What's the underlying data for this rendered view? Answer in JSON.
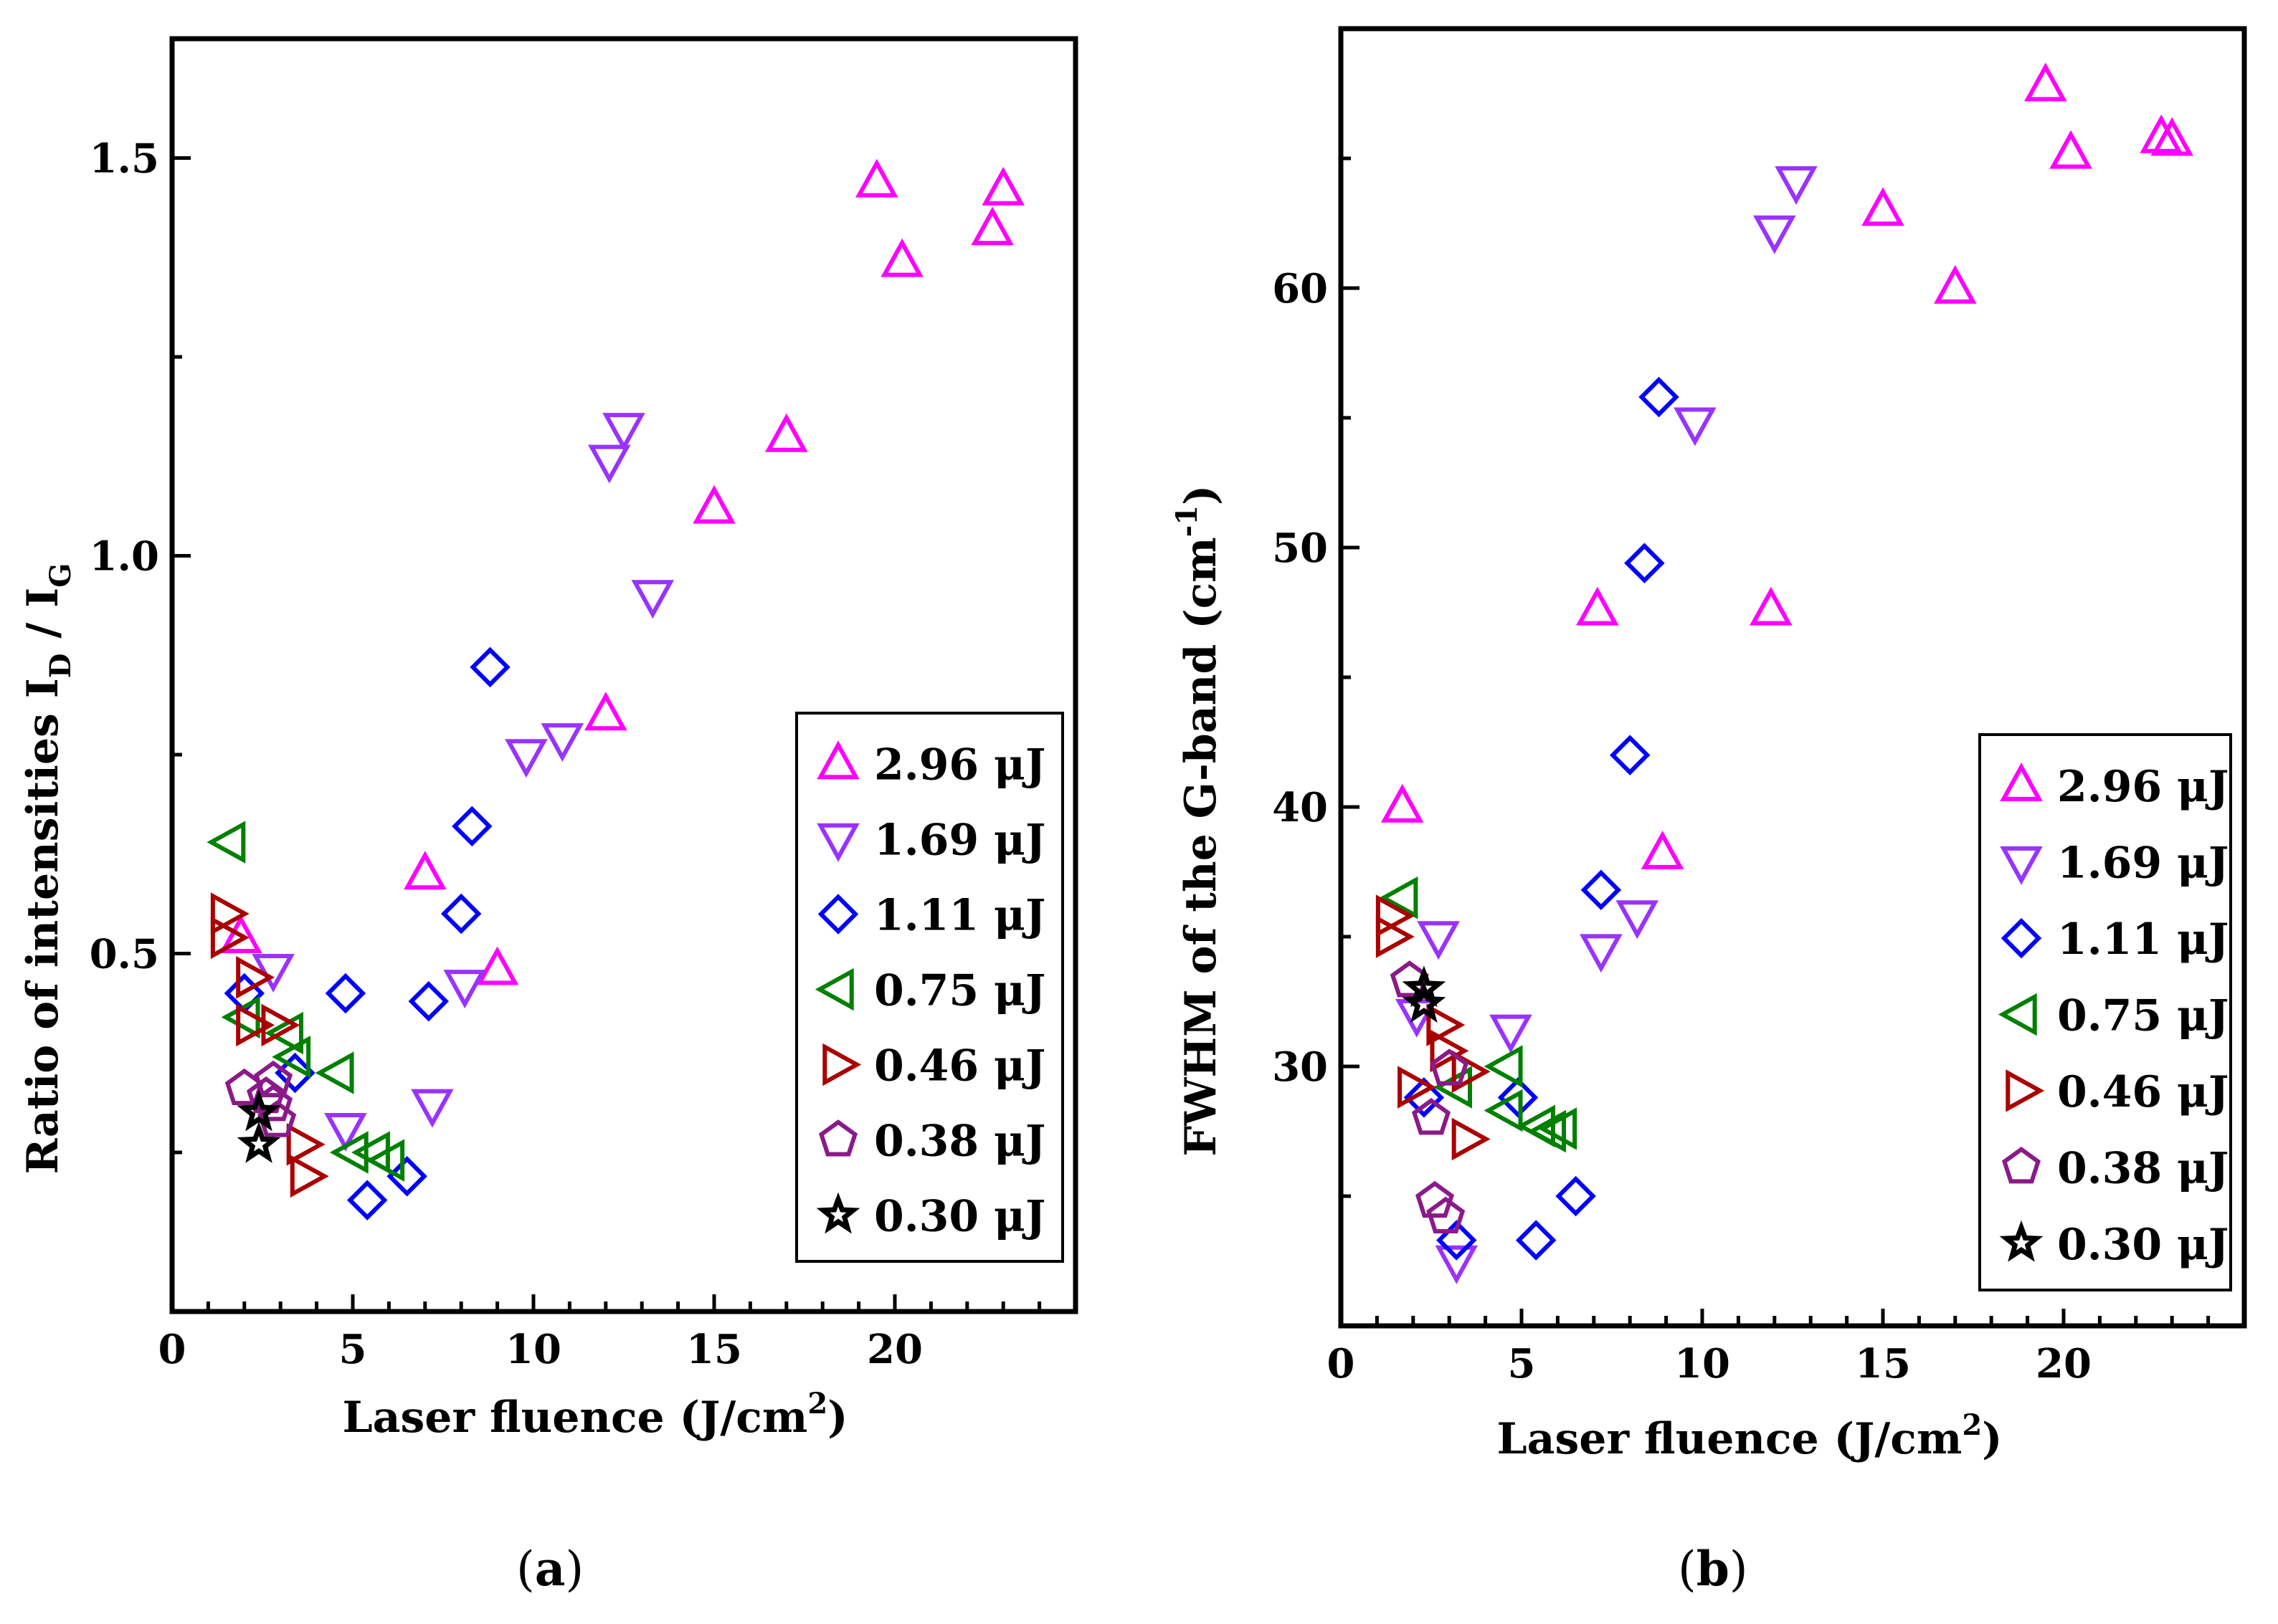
{
  "series_styles": [
    {
      "name": "2.96 μJ",
      "marker": "triangle-up-icon",
      "color": "#ff00ff"
    },
    {
      "name": "1.69 μJ",
      "marker": "triangle-down-icon",
      "color": "#9933ff"
    },
    {
      "name": "1.11 μJ",
      "marker": "diamond-icon",
      "color": "#0000ff"
    },
    {
      "name": "0.75 μJ",
      "marker": "triangle-left-icon",
      "color": "#008000"
    },
    {
      "name": "0.46 μJ",
      "marker": "triangle-right-icon",
      "color": "#aa0000"
    },
    {
      "name": "0.38 μJ",
      "marker": "pentagon-icon",
      "color": "#8b1a89"
    },
    {
      "name": "0.30 μJ",
      "marker": "star-icon",
      "color": "#000000"
    }
  ],
  "captions": {
    "a": "a",
    "b": "b"
  },
  "chart_data": [
    {
      "type": "scatter",
      "panel": "(a)",
      "ylabel": "Ratio of intensities  ID / IG",
      "ylabel_parts": {
        "main": "Ratio of intensities  I",
        "sub1": "D",
        "mid": " / I",
        "sub2": "G"
      },
      "xlabel": "Laser fluence (J/cm2)",
      "xlabel_parts": {
        "main": "Laser fluence (J/cm",
        "sup": "2",
        "end": ")"
      },
      "xlim": [
        0,
        25
      ],
      "ylim": [
        0.05,
        1.65
      ],
      "xticks": [
        0,
        5,
        10,
        15,
        20
      ],
      "yticks": [
        0.5,
        1.0,
        1.5
      ],
      "xtick_labels": [
        "0",
        "5",
        "10",
        "15",
        "20"
      ],
      "ytick_labels": [
        "0.5",
        "1.0",
        "1.5"
      ],
      "legend_position": "bottom-right",
      "series": [
        {
          "name": "2.96 μJ",
          "x": [
            1.9,
            7.0,
            9.0,
            12.0,
            15.0,
            17.0,
            19.5,
            20.2,
            22.7,
            23.0
          ],
          "y": [
            0.52,
            0.6,
            0.48,
            0.8,
            1.06,
            1.15,
            1.47,
            1.37,
            1.41,
            1.46
          ]
        },
        {
          "name": "1.69 μJ",
          "x": [
            2.8,
            4.8,
            7.2,
            8.1,
            9.8,
            10.8,
            12.1,
            12.5,
            13.3
          ],
          "y": [
            0.48,
            0.28,
            0.31,
            0.46,
            0.75,
            0.77,
            1.12,
            1.16,
            0.95
          ]
        },
        {
          "name": "1.11 μJ",
          "x": [
            2.0,
            3.4,
            4.8,
            5.4,
            6.5,
            7.1,
            8.0,
            8.3,
            8.8
          ],
          "y": [
            0.45,
            0.35,
            0.45,
            0.19,
            0.22,
            0.44,
            0.55,
            0.66,
            0.86
          ]
        },
        {
          "name": "0.75 μJ",
          "x": [
            1.6,
            2.0,
            3.2,
            3.4,
            4.6,
            5.0,
            5.6,
            6.0
          ],
          "y": [
            0.64,
            0.42,
            0.4,
            0.37,
            0.35,
            0.25,
            0.25,
            0.24
          ]
        },
        {
          "name": "0.46 μJ",
          "x": [
            1.5,
            1.5,
            2.2,
            2.2,
            2.9,
            3.6,
            3.7
          ],
          "y": [
            0.55,
            0.52,
            0.47,
            0.41,
            0.41,
            0.26,
            0.22
          ]
        },
        {
          "name": "0.38 μJ",
          "x": [
            2.0,
            2.8,
            2.6,
            2.8,
            2.9
          ],
          "y": [
            0.33,
            0.34,
            0.32,
            0.31,
            0.29
          ]
        },
        {
          "name": "0.30 μJ",
          "x": [
            2.4,
            2.4
          ],
          "y": [
            0.3,
            0.26
          ]
        }
      ]
    },
    {
      "type": "scatter",
      "panel": "(b)",
      "ylabel": "FWHM of the G-band (cm-1)",
      "ylabel_parts": {
        "main": "FWHM of the G-band (cm",
        "sup": "-1",
        "end": ")"
      },
      "xlabel": "Laser fluence (J/cm2)",
      "xlabel_parts": {
        "main": "Laser fluence (J/cm",
        "sup": "2",
        "end": ")"
      },
      "xlim": [
        0,
        25
      ],
      "ylim": [
        20,
        70
      ],
      "xticks": [
        0,
        5,
        10,
        15,
        20
      ],
      "yticks": [
        30,
        40,
        50,
        60
      ],
      "xtick_labels": [
        "0",
        "5",
        "10",
        "15",
        "20"
      ],
      "ytick_labels": [
        "30",
        "40",
        "50",
        "60"
      ],
      "legend_position": "bottom-right",
      "series": [
        {
          "name": "2.96 μJ",
          "x": [
            1.7,
            7.1,
            8.9,
            11.9,
            15.0,
            17.0,
            19.5,
            20.2,
            22.7,
            23.0
          ],
          "y": [
            40,
            47.6,
            38.2,
            47.6,
            63,
            60,
            67.8,
            65.2,
            65.8,
            65.7
          ]
        },
        {
          "name": "1.69 μJ",
          "x": [
            2.1,
            2.7,
            3.2,
            4.7,
            7.2,
            8.2,
            9.8,
            12.0,
            12.6
          ],
          "y": [
            32,
            35,
            22.5,
            31.4,
            34.5,
            35.8,
            54.8,
            62.2,
            64.1
          ]
        },
        {
          "name": "1.11 μJ",
          "x": [
            2.3,
            3.2,
            4.9,
            5.4,
            6.5,
            7.2,
            8.0,
            8.4,
            8.8
          ],
          "y": [
            28.8,
            23.3,
            28.8,
            23.3,
            25,
            36.8,
            42,
            49.4,
            55.8
          ]
        },
        {
          "name": "0.75 μJ",
          "x": [
            1.7,
            3.2,
            4.6,
            4.6,
            5.5,
            5.8,
            6.1
          ],
          "y": [
            36.5,
            29.2,
            30,
            28.3,
            27.7,
            27.5,
            27.6
          ]
        },
        {
          "name": "0.46 μJ",
          "x": [
            1.4,
            1.4,
            2.0,
            2.8,
            2.9,
            3.5,
            3.5
          ],
          "y": [
            35.8,
            35,
            29.2,
            31.6,
            30.6,
            29.8,
            27.2
          ]
        },
        {
          "name": "0.38 μJ",
          "x": [
            1.9,
            2.5,
            2.6,
            2.9,
            3.0
          ],
          "y": [
            33.3,
            28,
            24.8,
            24.2,
            29.9
          ]
        },
        {
          "name": "0.30 μJ",
          "x": [
            2.3,
            2.3
          ],
          "y": [
            33,
            32.4
          ]
        }
      ]
    }
  ]
}
